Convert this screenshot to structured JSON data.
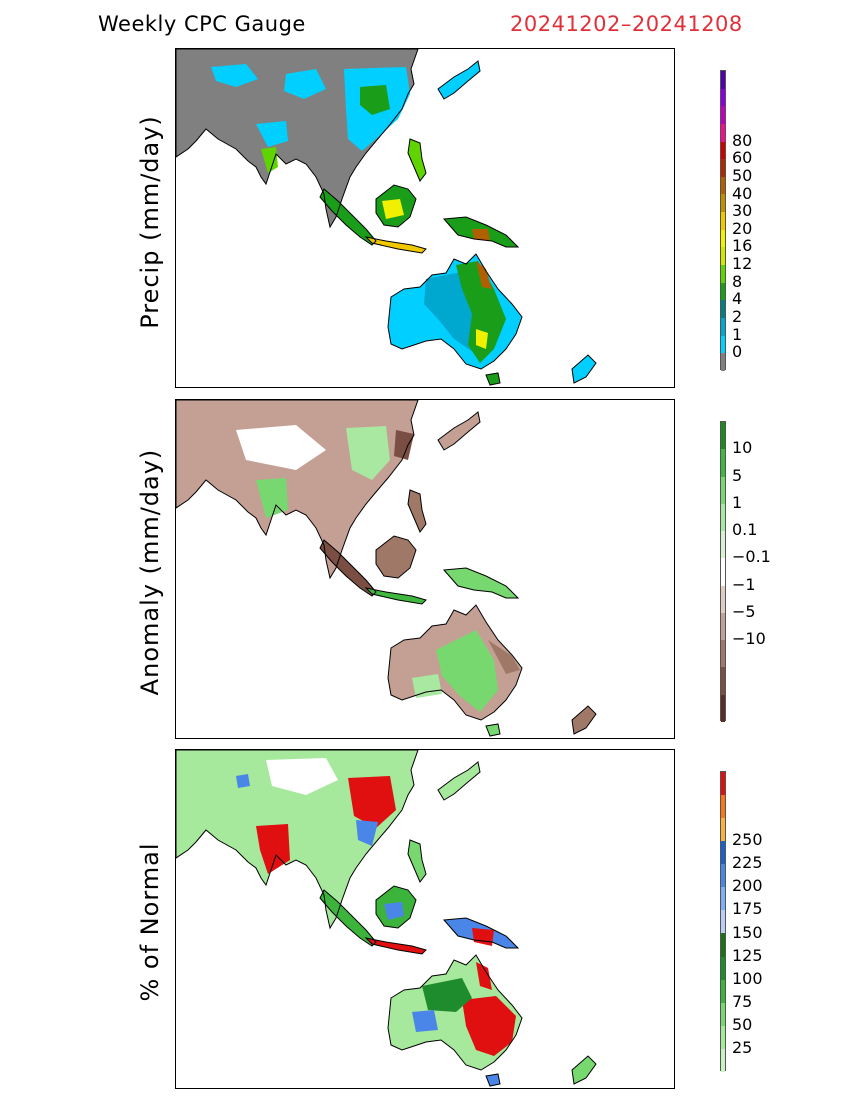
{
  "header": {
    "title": "Weekly CPC Gauge",
    "date_range": "20241202–20241208",
    "date_color": "#e0303a"
  },
  "panels": [
    {
      "id": "precip",
      "ylabel": "Precip (mm/day)",
      "colorbar": {
        "colors": [
          "#808080",
          "#00cfff",
          "#00a8d0",
          "#008080",
          "#1a9e1a",
          "#5fd400",
          "#d2e600",
          "#f0f000",
          "#f0c800",
          "#c09000",
          "#b06000",
          "#b02800",
          "#d00000",
          "#f0108c",
          "#c000c0",
          "#8c00e0",
          "#5000b0"
        ],
        "labels": [
          "0",
          "1",
          "2",
          "4",
          "8",
          "12",
          "16",
          "20",
          "30",
          "40",
          "50",
          "60",
          "80"
        ]
      }
    },
    {
      "id": "anomaly",
      "ylabel": "Anomaly (mm/day)",
      "colorbar": {
        "colors": [
          "#5a2e28",
          "#7a4e42",
          "#a07868",
          "#c4a094",
          "#e0ccc4",
          "#ffffff",
          "#d6f2d0",
          "#a8e8a0",
          "#78d870",
          "#40b840",
          "#1e8a1e"
        ],
        "labels": [
          "10",
          "5",
          "1",
          "0.1",
          "−0.1",
          "−1",
          "−5",
          "−10"
        ]
      }
    },
    {
      "id": "percent",
      "ylabel": "% of Normal",
      "colorbar": {
        "colors": [
          "#c8f2c0",
          "#a6e89c",
          "#78d870",
          "#3cb43c",
          "#1e8c2c",
          "#1e6e1e",
          "#b8d0f8",
          "#7eaef5",
          "#4a86e8",
          "#1e5ec8",
          "#fcb040",
          "#f87818",
          "#e01010"
        ],
        "labels": [
          "25",
          "50",
          "75",
          "100",
          "125",
          "150",
          "175",
          "200",
          "225",
          "250"
        ]
      }
    }
  ]
}
